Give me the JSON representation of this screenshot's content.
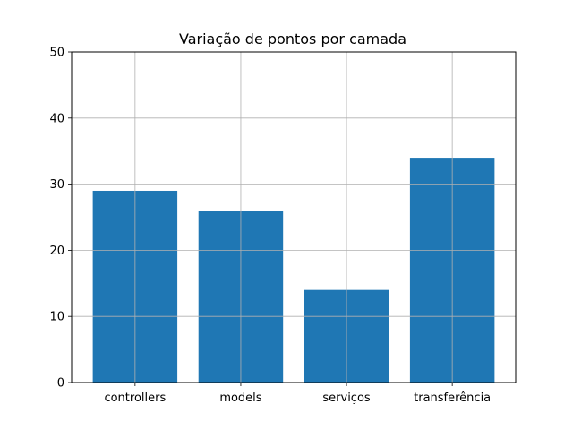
{
  "chart_data": {
    "type": "bar",
    "title": "Variação de pontos por camada",
    "xlabel": "",
    "ylabel": "",
    "categories": [
      "controllers",
      "models",
      "serviços",
      "transferência"
    ],
    "values": [
      29,
      26,
      14,
      34
    ],
    "ylim": [
      0,
      50
    ],
    "yticks": [
      0,
      10,
      20,
      30,
      40,
      50
    ],
    "grid": true,
    "bar_color": "#1f77b4",
    "grid_color": "#b0b0b0"
  }
}
